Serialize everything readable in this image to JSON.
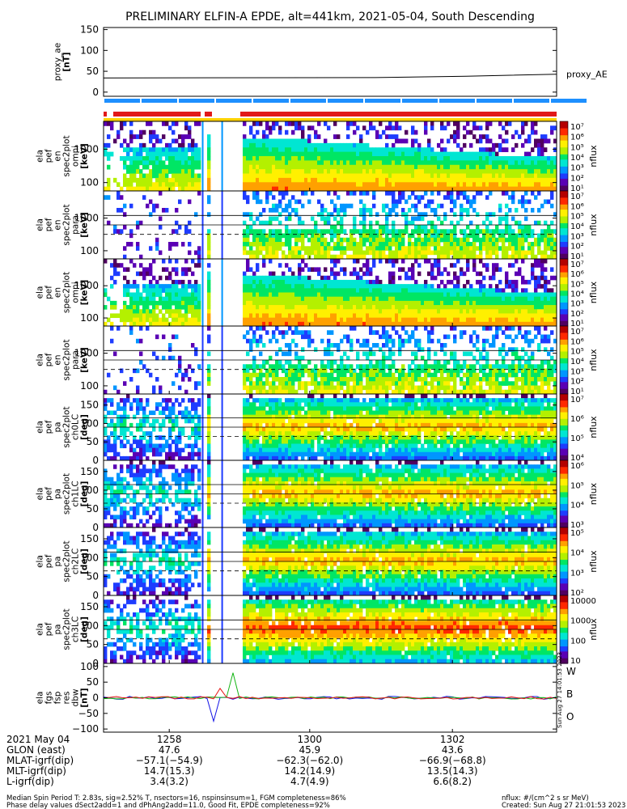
{
  "title": "PRELIMINARY ELFIN-A EPDE, alt=441km, 2021-05-04, South Descending",
  "colors": {
    "rainbow": [
      "#500060",
      "#5a00b4",
      "#1e3cff",
      "#0096ff",
      "#00e6d2",
      "#00e664",
      "#b4f000",
      "#fff000",
      "#ffa000",
      "#ff2800",
      "#b40000"
    ],
    "proxy_line": "#000000",
    "bar_red": "#e11919",
    "bar_blue": "#1e90ff",
    "bar_yellow": "#ffd200",
    "fgs_blue": "#1414e6",
    "fgs_green": "#14b414",
    "fgs_red": "#e61414"
  },
  "chart_data": [
    {
      "type": "line",
      "id": "proxy_ae",
      "ylabel": "proxy_ae\n[nT]",
      "yticks": [
        "150",
        "100",
        "50",
        "0"
      ],
      "ylim": [
        -10,
        155
      ],
      "series": [
        {
          "name": "proxy_AE",
          "x": [
            0,
            0.6,
            0.8,
            1.0
          ],
          "values": [
            34,
            35,
            38,
            43
          ]
        }
      ]
    },
    {
      "type": "heatmap",
      "id": "omni1",
      "ylabel": "ela\npef\nen\nspec2plot\nomni\n[keV]",
      "yticks": [
        "1000",
        "100"
      ],
      "scale": "log",
      "cbar_ticks": [
        "10⁷",
        "10⁶",
        "10⁵",
        "10⁴",
        "10³",
        "10²",
        "10¹"
      ],
      "cbar_label": "nflux"
    },
    {
      "type": "heatmap",
      "id": "para1",
      "ylabel": "ela\npef\nen\nspec2plot\npara\n[keV]",
      "yticks": [
        "1000",
        "100"
      ],
      "scale": "log",
      "cbar_ticks": [
        "10⁷",
        "10⁶",
        "10⁵",
        "10⁴",
        "10³",
        "10²",
        "10¹"
      ],
      "cbar_label": "nflux"
    },
    {
      "type": "heatmap",
      "id": "omni2",
      "ylabel": "ela\npef\nen\nspec2plot\nomni\n[keV]",
      "yticks": [
        "1000",
        "100"
      ],
      "scale": "log",
      "cbar_ticks": [
        "10⁷",
        "10⁶",
        "10⁵",
        "10⁴",
        "10³",
        "10²",
        "10¹"
      ],
      "cbar_label": "nflux"
    },
    {
      "type": "heatmap",
      "id": "para2",
      "ylabel": "ela\npef\nen\nspec2plot\npara\n[keV]",
      "yticks": [
        "1000",
        "100"
      ],
      "scale": "log",
      "cbar_ticks": [
        "10⁷",
        "10⁶",
        "10⁵",
        "10⁴",
        "10³",
        "10²",
        "10¹"
      ],
      "cbar_label": "nflux"
    },
    {
      "type": "heatmap",
      "id": "ch0",
      "ylabel": "ela\npef\npa\nspec2plot\nch0LC\n[deg]",
      "yticks": [
        "150",
        "100",
        "50",
        "0"
      ],
      "ylim": [
        0,
        180
      ],
      "cbar_ticks": [
        "10⁷",
        "10⁶",
        "10⁵",
        "10⁴"
      ],
      "cbar_label": "nflux"
    },
    {
      "type": "heatmap",
      "id": "ch1",
      "ylabel": "ela\npef\npa\nspec2plot\nch1LC\n[deg]",
      "yticks": [
        "150",
        "100",
        "50",
        "0"
      ],
      "ylim": [
        0,
        180
      ],
      "cbar_ticks": [
        "10⁶",
        "10⁵",
        "10⁴",
        "10³"
      ],
      "cbar_label": "nflux"
    },
    {
      "type": "heatmap",
      "id": "ch2",
      "ylabel": "ela\npef\npa\nspec2plot\nch2LC\n[deg]",
      "yticks": [
        "150",
        "100",
        "50",
        "0"
      ],
      "ylim": [
        0,
        180
      ],
      "cbar_ticks": [
        "10⁵",
        "10⁴",
        "10³",
        "10²"
      ],
      "cbar_label": "nflux"
    },
    {
      "type": "heatmap",
      "id": "ch3",
      "ylabel": "ela\npef\npa\nspec2plot\nch3LC\n[deg]",
      "yticks": [
        "150",
        "100",
        "50",
        "0"
      ],
      "ylim": [
        0,
        180
      ],
      "cbar_ticks": [
        "10000",
        "1000",
        "100",
        "10"
      ],
      "cbar_label": "nflux"
    },
    {
      "type": "line",
      "id": "fgs",
      "ylabel": "ela\nfgs\nfsp\nres\ndbw\n[nT]",
      "yticks": [
        "100",
        "50",
        "0",
        "−50",
        "−100"
      ],
      "ylim": [
        -110,
        110
      ],
      "legend": [
        "W",
        "B",
        "O"
      ]
    }
  ],
  "xaxis": {
    "row_labels": [
      "2021 May 04",
      "GLON (east)",
      "MLAT-igrf(dip)",
      "MLT-igrf(dip)",
      "L-igrf(dip)"
    ],
    "columns": [
      {
        "time": "1258",
        "vals": [
          "47.6",
          "−57.1(−54.9)",
          "14.7(15.3)",
          "3.4(3.2)"
        ]
      },
      {
        "time": "1300",
        "vals": [
          "45.9",
          "−62.3(−62.0)",
          "14.2(14.9)",
          "4.7(4.9)"
        ]
      },
      {
        "time": "1302",
        "vals": [
          "43.6",
          "−66.9(−68.8)",
          "13.5(14.3)",
          "6.6(8.2)"
        ]
      }
    ]
  },
  "footer": {
    "line1_left": "Median Spin Period T: 2.83s, sig=2.52% T, nsectors=16, nspinsinsum=1, FGM completeness=86%",
    "line2_left": "Phase delay values dSect2add=1 and dPhAng2add=11.0, Good Fit, EPDE completeness=92%",
    "line1_right": "nflux: #/(cm^2 s sr MeV)",
    "line2_right": "Created: Sun Aug 27 21:01:53 2023"
  },
  "side_stamp": "Sun Aug 27 14:01:53 2023"
}
